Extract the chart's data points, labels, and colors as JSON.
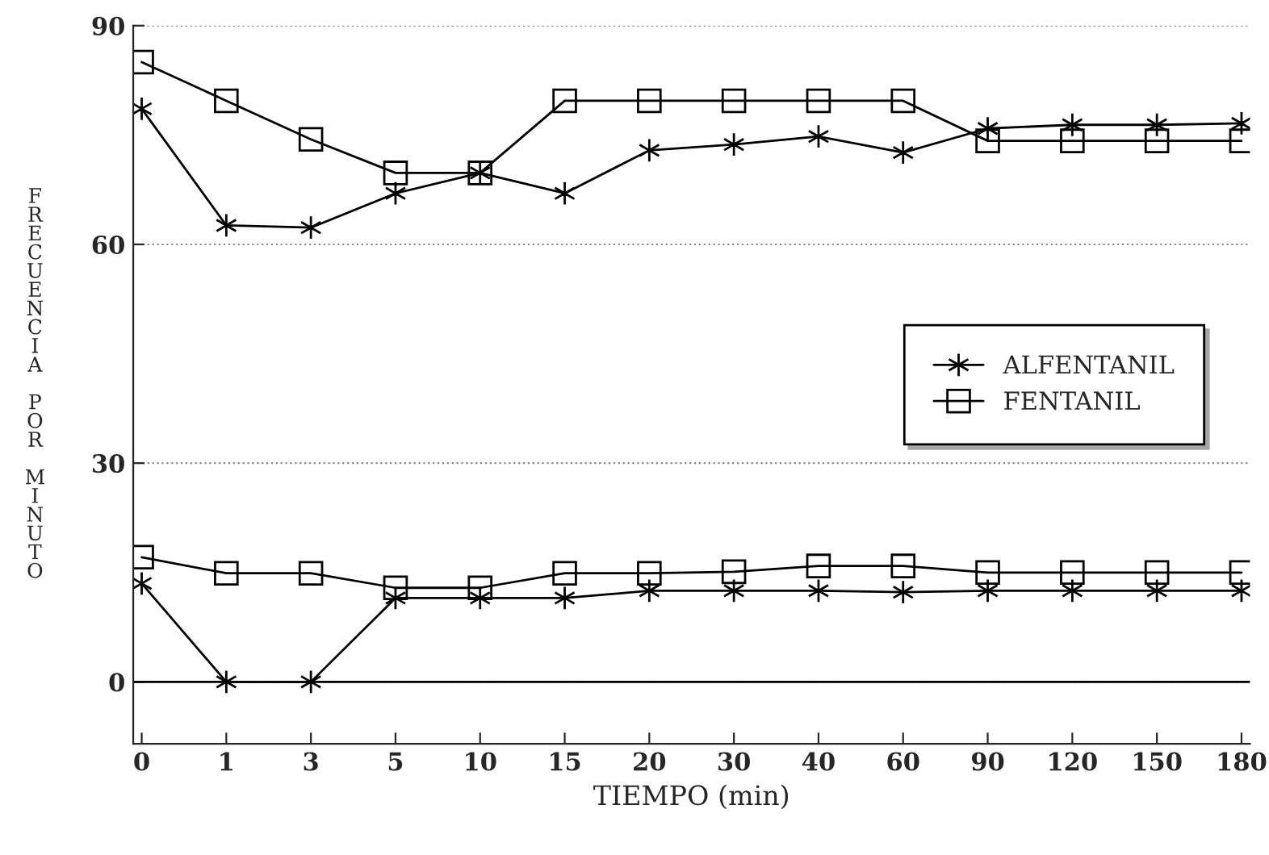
{
  "chart_data": {
    "type": "line",
    "xlabel": "TIEMPO (min)",
    "ylabel": "FRECUENCIA POR MINUTO",
    "categories": [
      "0",
      "1",
      "3",
      "5",
      "10",
      "15",
      "20",
      "30",
      "40",
      "60",
      "90",
      "120",
      "150",
      "180"
    ],
    "series": [
      {
        "name": "ALFENTANIL",
        "color": "#000000",
        "marker": "cross",
        "values": [
          78.6,
          62.6,
          62.3,
          67,
          69.8,
          67,
          72.9,
          73.7,
          74.8,
          72.6,
          75.9,
          76.4,
          76.4,
          76.6
        ]
      },
      {
        "name": "FENTANIL",
        "color": "#000000",
        "marker": "square",
        "values": [
          85,
          79.7,
          74.4,
          69.8,
          69.8,
          79.7,
          79.7,
          79.7,
          79.7,
          79.7,
          74.2,
          74.2,
          74.2,
          74.2
        ]
      },
      {
        "color": "#000000",
        "marker": "cross",
        "values": [
          13.5,
          0,
          0,
          11.5,
          11.5,
          11.5,
          12.5,
          12.5,
          12.5,
          12.3,
          12.5,
          12.5,
          12.5,
          12.5
        ]
      },
      {
        "color": "#000000",
        "marker": "square",
        "values": [
          17.1,
          14.9,
          14.9,
          12.9,
          12.9,
          14.9,
          14.9,
          15.1,
          15.9,
          15.9,
          15,
          15,
          15,
          15
        ]
      }
    ],
    "ylim": [
      -8.5,
      90
    ],
    "yticks": [
      0,
      30,
      60,
      90
    ],
    "grid": "y",
    "legend": "right",
    "line_style": "solid",
    "ref_lines": [
      {
        "axis": "y",
        "value": 0,
        "color": "#000000",
        "line_style": "solid"
      }
    ]
  }
}
